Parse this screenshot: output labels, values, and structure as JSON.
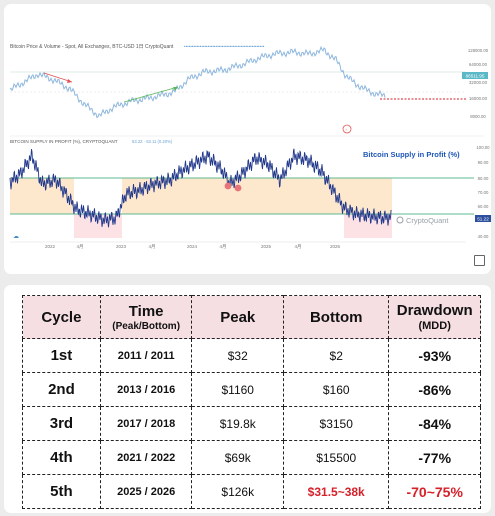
{
  "top_chart": {
    "price_panel": {
      "header": "Bitcoin Price & Volume - Spot, All Exchanges, BTC-USD  1日  CryptoQuant",
      "y_ticks": [
        "128000.00",
        "64000.00",
        "32000.00",
        "16000.00",
        "8000.00"
      ],
      "price_label": "86511.95"
    },
    "supply_panel": {
      "header": "BITCOIN SUPPLY IN PROFIT (%), CRYPTOQUANT",
      "title": "Bitcoin Supply in Profit (%)",
      "y_ticks": [
        "100.00",
        "90.00",
        "80.00",
        "70.00",
        "60.00",
        "50.00",
        "40.00"
      ],
      "value_label": "51.22",
      "watermark": "CryptoQuant"
    },
    "x_ticks": [
      "2022",
      "4月",
      "2023",
      "4月",
      "2024",
      "4月",
      "2025",
      "4月",
      "2026"
    ],
    "colors": {
      "price_line": "#8eb6de",
      "supply_line": "#243a8c",
      "green_band": "#5bb890",
      "orange_band": "#fde4c4",
      "pink_band": "#fbdde1",
      "red_line": "#d6212a"
    }
  },
  "chart_data": {
    "type": "table",
    "title": "",
    "columns": [
      "Cycle",
      "Time",
      "(Peak/Bottom)",
      "Peak",
      "Bottom",
      "Drawdown",
      "(MDD)"
    ],
    "rows": [
      {
        "cycle": "1st",
        "time": "2011 / 2011",
        "peak": "$32",
        "bottom": "$2",
        "mdd": "-93%"
      },
      {
        "cycle": "2nd",
        "time": "2013 / 2016",
        "peak": "$1160",
        "bottom": "$160",
        "mdd": "-86%"
      },
      {
        "cycle": "3rd",
        "time": "2017 / 2018",
        "peak": "$19.8k",
        "bottom": "$3150",
        "mdd": "-84%"
      },
      {
        "cycle": "4th",
        "time": "2021 / 2022",
        "peak": "$69k",
        "bottom": "$15500",
        "mdd": "-77%"
      },
      {
        "cycle": "5th",
        "time": "2025 / 2026",
        "peak": "$126k",
        "bottom": "$31.5~38k",
        "mdd": "-70~75%"
      }
    ],
    "highlight_row": 4,
    "highlight_color": "#d6212a",
    "header_color": "#f6dfe3"
  }
}
